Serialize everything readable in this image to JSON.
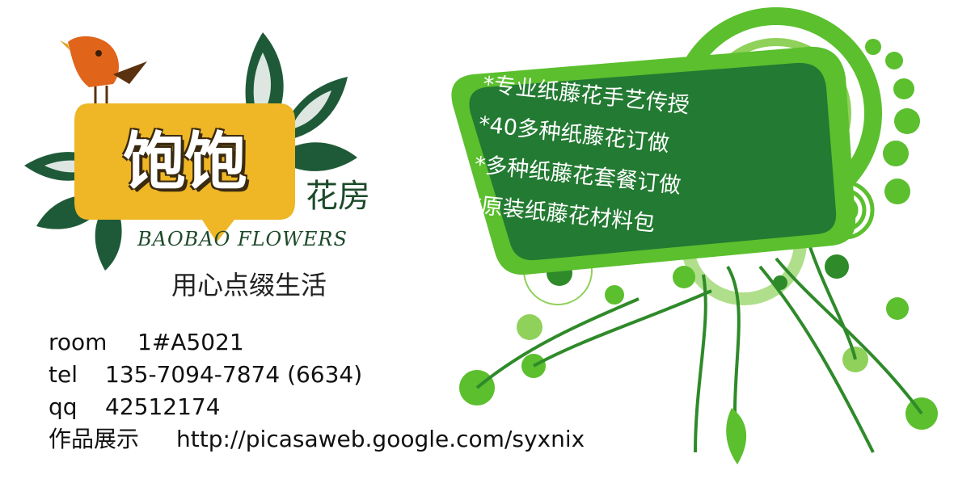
{
  "brand": {
    "title": "饱饱",
    "subtitle": "花房",
    "english": "BAOBAO FLOWERS",
    "slogan": "用心点缀生活"
  },
  "features": [
    "*专业纸藤花手艺传授",
    "*40多种纸藤花订做",
    "*多种纸藤花套餐订做",
    "*原装纸藤花材料包"
  ],
  "contact": {
    "room_label": "room",
    "room_value": "1#A5021",
    "tel_label": "tel",
    "tel_value": "135-7094-7874 (6634)",
    "qq_label": "qq",
    "qq_value": "42512174",
    "works_label": "作品展示",
    "works_value": "http://picasaweb.google.com/syxnix"
  },
  "colors": {
    "dark_green": "#1f5a38",
    "bright_green": "#5bbf2e",
    "light_green": "#8fd15a",
    "board_green": "#237a32",
    "yellow": "#efb625",
    "bird_orange": "#e0641a"
  },
  "icons": {
    "bird": "bird-icon",
    "leaves": "leaf-icon"
  }
}
